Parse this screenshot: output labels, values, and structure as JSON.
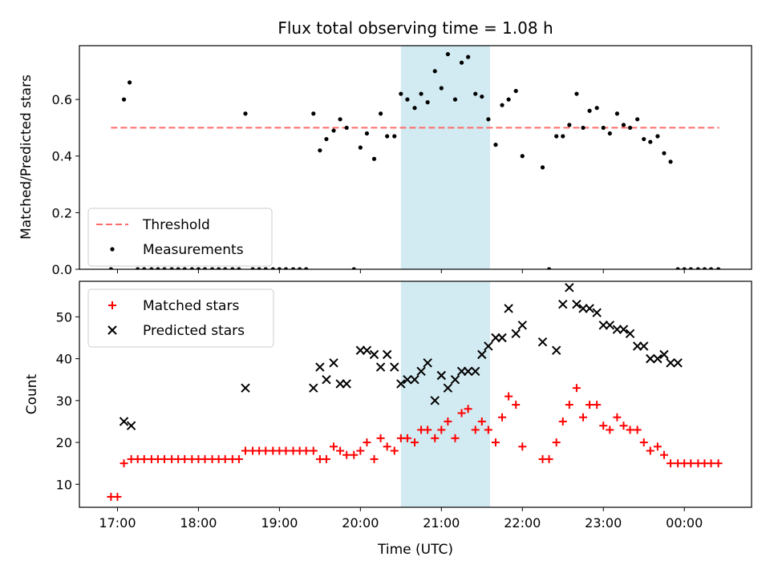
{
  "chart_data": [
    {
      "type": "scatter",
      "title": "Flux total observing time = 1.08 h",
      "ylabel": "Matched/Predicted stars",
      "xlabel": "",
      "ylim": [
        0,
        0.79
      ],
      "yticks": [
        0.0,
        0.2,
        0.4,
        0.6
      ],
      "ytick_labels": [
        "0.0",
        "0.2",
        "0.4",
        "0.6"
      ],
      "grid": false,
      "legend": "lower-left",
      "shaded_interval": [
        20.5,
        21.6
      ],
      "shade_color": "#add8e6",
      "threshold": {
        "name": "Threshold",
        "value": 0.5,
        "x": [
          16.92,
          24.43
        ],
        "color": "#ff6b6b"
      },
      "series": [
        {
          "name": "Measurements",
          "color": "#000000",
          "x": [
            16.92,
            17.08,
            17.15,
            17.25,
            17.33,
            17.42,
            17.5,
            17.58,
            17.67,
            17.75,
            17.83,
            17.92,
            18.0,
            18.08,
            18.17,
            18.25,
            18.33,
            18.42,
            18.5,
            18.58,
            18.67,
            18.75,
            18.83,
            18.92,
            19.0,
            19.08,
            19.17,
            19.25,
            19.33,
            19.42,
            19.5,
            19.58,
            19.67,
            19.75,
            19.83,
            19.92,
            20.0,
            20.08,
            20.17,
            20.25,
            20.33,
            20.42,
            20.5,
            20.58,
            20.67,
            20.75,
            20.83,
            20.92,
            21.0,
            21.08,
            21.17,
            21.25,
            21.33,
            21.42,
            21.5,
            21.58,
            21.67,
            21.75,
            21.83,
            21.92,
            22.0,
            22.25,
            22.33,
            22.42,
            22.5,
            22.58,
            22.67,
            22.75,
            22.83,
            22.92,
            23.0,
            23.08,
            23.17,
            23.25,
            23.33,
            23.42,
            23.5,
            23.58,
            23.67,
            23.75,
            23.83,
            23.92,
            24.0,
            24.08,
            24.17,
            24.25,
            24.33,
            24.42
          ],
          "y": [
            0.0,
            0.6,
            0.66,
            0.0,
            0.0,
            0.0,
            0.0,
            0.0,
            0.0,
            0.0,
            0.0,
            0.0,
            0.0,
            0.0,
            0.0,
            0.0,
            0.0,
            0.0,
            0.0,
            0.55,
            0.0,
            0.0,
            0.0,
            0.0,
            0.0,
            0.0,
            0.0,
            0.0,
            0.0,
            0.55,
            0.42,
            0.46,
            0.49,
            0.53,
            0.5,
            0.0,
            0.43,
            0.48,
            0.39,
            0.55,
            0.47,
            0.47,
            0.62,
            0.6,
            0.57,
            0.62,
            0.59,
            0.7,
            0.64,
            0.76,
            0.6,
            0.73,
            0.75,
            0.62,
            0.61,
            0.53,
            0.44,
            0.58,
            0.6,
            0.63,
            0.4,
            0.36,
            0.0,
            0.47,
            0.47,
            0.51,
            0.62,
            0.5,
            0.56,
            0.57,
            0.5,
            0.48,
            0.55,
            0.51,
            0.5,
            0.53,
            0.46,
            0.45,
            0.47,
            0.41,
            0.38,
            0.0,
            0.0,
            0.0,
            0.0,
            0.0,
            0.0,
            0.0
          ]
        }
      ]
    },
    {
      "type": "scatter",
      "title": "",
      "xlabel": "Time (UTC)",
      "ylabel": "Count",
      "ylim": [
        4.5,
        58.5
      ],
      "yticks": [
        10,
        20,
        30,
        40,
        50
      ],
      "ytick_labels": [
        "10",
        "20",
        "30",
        "40",
        "50"
      ],
      "xlim": [
        16.53,
        24.83
      ],
      "xticks": [
        17,
        18,
        19,
        20,
        21,
        22,
        23,
        24
      ],
      "xtick_labels": [
        "17:00",
        "18:00",
        "19:00",
        "20:00",
        "21:00",
        "22:00",
        "23:00",
        "00:00"
      ],
      "grid": false,
      "legend": "top-left",
      "shaded_interval": [
        20.5,
        21.6
      ],
      "series": [
        {
          "name": "Matched stars",
          "marker": "plus",
          "color": "#ff0000",
          "x": [
            16.92,
            17.0,
            17.08,
            17.17,
            17.25,
            17.33,
            17.42,
            17.5,
            17.58,
            17.67,
            17.75,
            17.83,
            17.92,
            18.0,
            18.08,
            18.17,
            18.25,
            18.33,
            18.42,
            18.5,
            18.58,
            18.67,
            18.75,
            18.83,
            18.92,
            19.0,
            19.08,
            19.17,
            19.25,
            19.33,
            19.42,
            19.5,
            19.58,
            19.67,
            19.75,
            19.83,
            19.92,
            20.0,
            20.08,
            20.17,
            20.25,
            20.33,
            20.42,
            20.5,
            20.58,
            20.67,
            20.75,
            20.83,
            20.92,
            21.0,
            21.08,
            21.17,
            21.25,
            21.33,
            21.42,
            21.5,
            21.58,
            21.67,
            21.75,
            21.83,
            21.92,
            22.0,
            22.25,
            22.33,
            22.42,
            22.5,
            22.58,
            22.67,
            22.75,
            22.83,
            22.92,
            23.0,
            23.08,
            23.17,
            23.25,
            23.33,
            23.42,
            23.5,
            23.58,
            23.67,
            23.75,
            23.83,
            23.92,
            24.0,
            24.08,
            24.17,
            24.25,
            24.33,
            24.42
          ],
          "y": [
            7,
            7,
            15,
            16,
            16,
            16,
            16,
            16,
            16,
            16,
            16,
            16,
            16,
            16,
            16,
            16,
            16,
            16,
            16,
            16,
            18,
            18,
            18,
            18,
            18,
            18,
            18,
            18,
            18,
            18,
            18,
            16,
            16,
            19,
            18,
            17,
            17,
            18,
            20,
            16,
            21,
            19,
            18,
            21,
            21,
            20,
            23,
            23,
            21,
            23,
            25,
            21,
            27,
            28,
            23,
            25,
            23,
            20,
            26,
            31,
            29,
            19,
            16,
            16,
            20,
            25,
            29,
            33,
            26,
            29,
            29,
            24,
            23,
            26,
            24,
            23,
            23,
            20,
            18,
            19,
            17,
            15,
            15,
            15,
            15,
            15,
            15,
            15,
            15
          ],
          "name_in_legend": "Matched stars"
        },
        {
          "name": "Predicted stars",
          "marker": "x",
          "color": "#000000",
          "x": [
            17.08,
            17.17,
            18.58,
            19.42,
            19.5,
            19.58,
            19.67,
            19.75,
            19.83,
            20.0,
            20.08,
            20.17,
            20.25,
            20.33,
            20.42,
            20.5,
            20.58,
            20.67,
            20.75,
            20.83,
            20.92,
            21.0,
            21.08,
            21.17,
            21.25,
            21.33,
            21.42,
            21.5,
            21.58,
            21.67,
            21.75,
            21.83,
            21.92,
            22.0,
            22.25,
            22.42,
            22.5,
            22.58,
            22.67,
            22.75,
            22.83,
            22.92,
            23.0,
            23.08,
            23.17,
            23.25,
            23.33,
            23.42,
            23.5,
            23.58,
            23.67,
            23.75,
            23.83,
            23.92
          ],
          "y": [
            25,
            24,
            33,
            33,
            38,
            35,
            39,
            34,
            34,
            42,
            42,
            41,
            38,
            41,
            38,
            34,
            35,
            35,
            37,
            39,
            30,
            36,
            33,
            35,
            37,
            37,
            37,
            41,
            43,
            45,
            45,
            52,
            46,
            48,
            44,
            42,
            53,
            57,
            53,
            52,
            52,
            51,
            48,
            48,
            47,
            47,
            46,
            43,
            43,
            40,
            40,
            41,
            39,
            39
          ]
        }
      ]
    }
  ]
}
